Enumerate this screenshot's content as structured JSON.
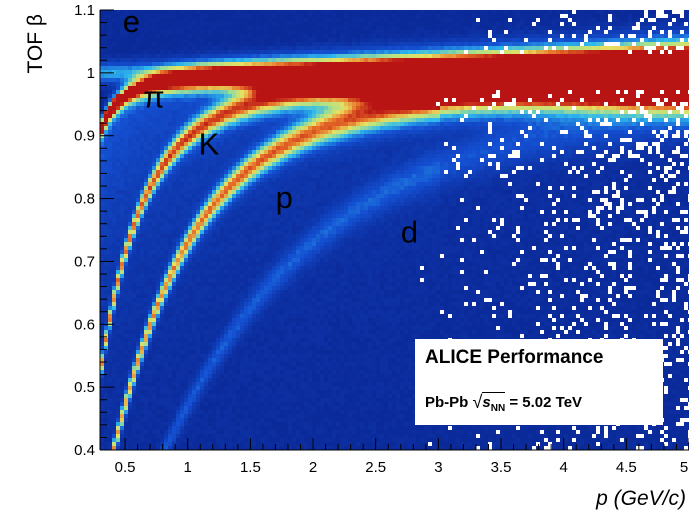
{
  "chart_data": {
    "type": "heatmap",
    "title": "",
    "xlabel": "p (GeV/c)",
    "ylabel": "TOF β",
    "xlim": [
      0.3,
      5.0
    ],
    "ylim": [
      0.4,
      1.1
    ],
    "x_ticks": [
      "0.5",
      "1",
      "1.5",
      "2",
      "2.5",
      "3",
      "3.5",
      "4",
      "4.5",
      "5"
    ],
    "y_ticks": [
      "0.4",
      "0.5",
      "0.6",
      "0.7",
      "0.8",
      "0.9",
      "1",
      "1.1"
    ],
    "colormap": "blue-cyan-yellow-red",
    "colors": {
      "low": "#0b2a9a",
      "mid": "#2fb8ee",
      "high_mid": "#e8e060",
      "high": "#b81414"
    },
    "bands": [
      {
        "name": "e",
        "mass_GeV": 0.000511,
        "relative_intensity": 0.45
      },
      {
        "name": "π",
        "mass_GeV": 0.1396,
        "relative_intensity": 1.0
      },
      {
        "name": "K",
        "mass_GeV": 0.4937,
        "relative_intensity": 0.85
      },
      {
        "name": "p",
        "mass_GeV": 0.9383,
        "relative_intensity": 0.85
      },
      {
        "name": "d",
        "mass_GeV": 1.8756,
        "relative_intensity": 0.25
      }
    ],
    "band_labels": [
      {
        "text": "e",
        "x": 0.55,
        "y": 1.065
      },
      {
        "text": "π",
        "x": 0.73,
        "y": 0.945
      },
      {
        "text": "K",
        "x": 1.17,
        "y": 0.87
      },
      {
        "text": "p",
        "x": 1.77,
        "y": 0.785
      },
      {
        "text": "d",
        "x": 2.77,
        "y": 0.73
      }
    ]
  },
  "legend": {
    "title": "ALICE Performance",
    "system": "Pb-Pb",
    "energy_var": "s",
    "energy_sub": "NN",
    "energy_value": "= 5.02 TeV"
  }
}
